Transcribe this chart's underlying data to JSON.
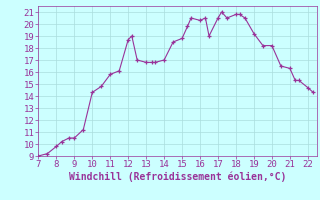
{
  "x": [
    7,
    7.5,
    8,
    8.3,
    8.7,
    9,
    9.5,
    10,
    10.5,
    11,
    11.5,
    12,
    12.2,
    12.5,
    13,
    13.3,
    13.5,
    14,
    14.5,
    15,
    15.3,
    15.5,
    16,
    16.3,
    16.5,
    17,
    17.2,
    17.5,
    18,
    18.2,
    18.5,
    19,
    19.5,
    20,
    20.5,
    21,
    21.3,
    21.5,
    22,
    22.3
  ],
  "y": [
    9,
    9.2,
    9.8,
    10.2,
    10.5,
    10.5,
    11.2,
    14.3,
    14.8,
    15.8,
    16.1,
    18.7,
    19.0,
    17.0,
    16.8,
    16.8,
    16.8,
    17.0,
    18.5,
    18.8,
    19.8,
    20.5,
    20.3,
    20.5,
    19.0,
    20.5,
    21.0,
    20.5,
    20.8,
    20.8,
    20.5,
    19.2,
    18.2,
    18.2,
    16.5,
    16.3,
    15.3,
    15.3,
    14.7,
    14.3
  ],
  "line_color": "#993399",
  "marker": "+",
  "bg_color": "#ccffff",
  "grid_color": "#aadddd",
  "text_color": "#993399",
  "xlabel": "Windchill (Refroidissement éolien,°C)",
  "xlim": [
    7,
    22.5
  ],
  "ylim": [
    9,
    21.5
  ],
  "xticks": [
    7,
    8,
    9,
    10,
    11,
    12,
    13,
    14,
    15,
    16,
    17,
    18,
    19,
    20,
    21,
    22
  ],
  "yticks": [
    9,
    10,
    11,
    12,
    13,
    14,
    15,
    16,
    17,
    18,
    19,
    20,
    21
  ],
  "tick_fontsize": 6.5,
  "xlabel_fontsize": 7
}
